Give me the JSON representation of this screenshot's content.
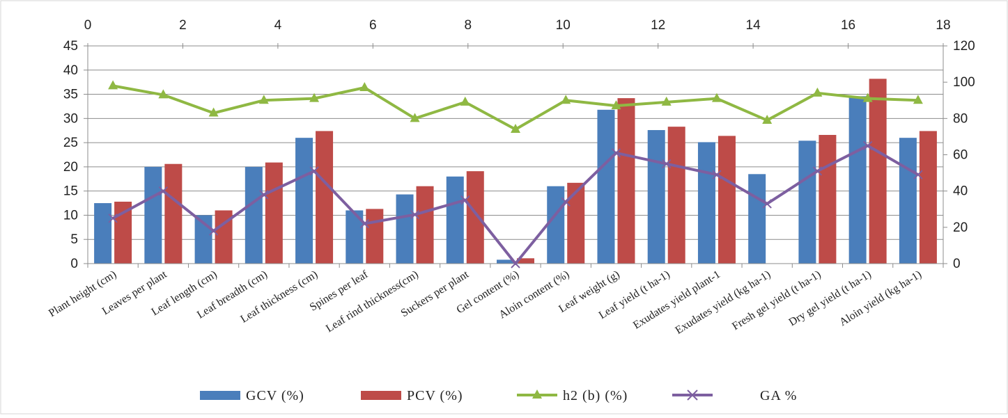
{
  "chart_data": {
    "type": "bar",
    "categories": [
      "Plant height (cm)",
      "Leaves per plant",
      "Leaf length (cm)",
      "Leaf breadth  (cm)",
      "Leaf thickness (cm)",
      "Spines per leaf",
      "Leaf rind thickness(cm)",
      "Suckers per plant",
      "Gel content (%)",
      "Aloin content (%)",
      "Leaf weight (g)",
      "Leaf yield (t ha-1)",
      "Exudates yield plant-1",
      "Exudates yield (kg ha-1)",
      "Fresh gel yield (t ha-1)",
      "Dry gel yield (t ha-1)",
      "Aloin yield (kg ha-1)"
    ],
    "series": [
      {
        "name": "GCV (%)",
        "type": "bar",
        "axis": "left",
        "color": "#4a7ebb",
        "values": [
          12.5,
          20,
          10,
          20,
          26,
          11,
          14.3,
          18,
          0.8,
          16,
          31.8,
          27.6,
          25.1,
          18.5,
          25.4,
          34.6,
          26
        ]
      },
      {
        "name": "PCV (%)",
        "type": "bar",
        "axis": "left",
        "color": "#be4b48",
        "values": [
          12.8,
          20.6,
          11,
          20.9,
          27.4,
          11.3,
          16,
          19.1,
          1.1,
          16.7,
          34.2,
          28.3,
          26.4,
          null,
          26.6,
          38.2,
          27.4
        ]
      },
      {
        "name": "h2 (b) (%)",
        "type": "line",
        "axis": "right",
        "color": "#8fb843",
        "marker": "triangle",
        "values": [
          98,
          93,
          83,
          90,
          91,
          97,
          80,
          89,
          74,
          90,
          87,
          89,
          91,
          79,
          94,
          91,
          90
        ]
      },
      {
        "name": "GA %",
        "type": "line",
        "axis": "right",
        "color": "#7d5fa0",
        "marker": "x",
        "values": [
          25,
          40,
          18,
          38,
          51,
          22,
          27,
          35,
          0,
          34,
          61,
          55,
          49,
          33,
          51,
          65,
          49
        ]
      }
    ],
    "y_left": {
      "ticks": [
        "0",
        "5",
        "10",
        "15",
        "20",
        "25",
        "30",
        "35",
        "40",
        "45"
      ],
      "range": [
        0,
        45
      ]
    },
    "y_right": {
      "ticks": [
        "0",
        "20",
        "40",
        "60",
        "80",
        "100",
        "120"
      ],
      "range": [
        0,
        120
      ]
    },
    "x_top": {
      "ticks": [
        "0",
        "2",
        "4",
        "6",
        "8",
        "10",
        "12",
        "14",
        "16",
        "18"
      ],
      "range": [
        0,
        18
      ]
    },
    "grid": true,
    "legend_position": "bottom"
  }
}
